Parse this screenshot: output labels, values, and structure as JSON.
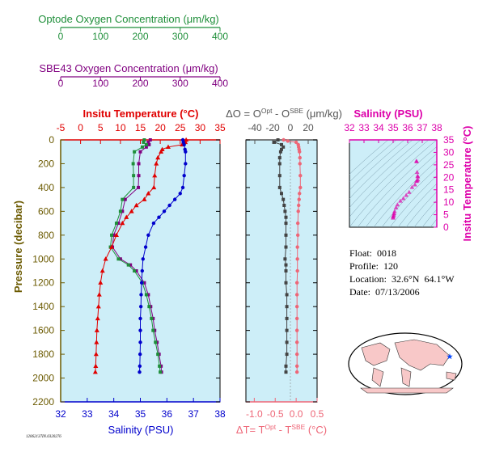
{
  "colors": {
    "panel_bg": "#cdeef8",
    "optode": "#1f8f3a",
    "sbe": "#800080",
    "temp": "#e00000",
    "sal": "#0000cc",
    "pressure": "#6b5a00",
    "delta_o": "#444444",
    "delta_t": "#ee6677",
    "ts": "#dd00aa"
  },
  "top_axes": {
    "optode": {
      "label": "Optode Oxygen Concentration (μm/kg)",
      "ticks": [
        "0",
        "100",
        "200",
        "300",
        "400"
      ]
    },
    "sbe": {
      "label": "SBE43 Oxygen Concentration (μm/kg)",
      "ticks": [
        "0",
        "100",
        "200",
        "300",
        "400"
      ]
    }
  },
  "info": {
    "float": "Float:  0018",
    "profile": "Profile:  120",
    "location": "Location:  32.6°N  64.1°W",
    "date": "Date:  07/13/2006"
  },
  "footer_id": "12062137IN.0320276",
  "chart_data": [
    {
      "type": "scatter",
      "panel": "profile",
      "title": "Insitu Temperature (°C)",
      "xlabel": "Salinity (PSU)",
      "ylabel": "Pressure (decibar)",
      "temp_ticks": [
        "-5",
        "0",
        "5",
        "10",
        "15",
        "20",
        "25",
        "30",
        "35"
      ],
      "sal_ticks": [
        "32",
        "33",
        "34",
        "35",
        "36",
        "37",
        "38"
      ],
      "pressure_ticks": [
        "0",
        "200",
        "400",
        "600",
        "800",
        "1000",
        "1200",
        "1400",
        "1600",
        "1800",
        "2000",
        "2200"
      ],
      "temp_range": [
        -5,
        35
      ],
      "sal_range": [
        32,
        38
      ],
      "oxy_range": [
        0,
        400
      ],
      "pressure_range": [
        0,
        2200
      ],
      "series": [
        {
          "name": "Insitu Temperature",
          "points": [
            [
              0,
              26.5
            ],
            [
              20,
              26.3
            ],
            [
              40,
              25.5
            ],
            [
              60,
              22
            ],
            [
              80,
              20.5
            ],
            [
              100,
              20.2
            ],
            [
              150,
              19.4
            ],
            [
              200,
              19
            ],
            [
              300,
              18.6
            ],
            [
              400,
              18.4
            ],
            [
              450,
              17
            ],
            [
              500,
              16
            ],
            [
              550,
              14
            ],
            [
              600,
              12.8
            ],
            [
              650,
              11.5
            ],
            [
              700,
              10.5
            ],
            [
              800,
              9
            ],
            [
              900,
              7.8
            ],
            [
              1000,
              6.3
            ],
            [
              1100,
              5.5
            ],
            [
              1200,
              5
            ],
            [
              1300,
              4.7
            ],
            [
              1400,
              4.5
            ],
            [
              1500,
              4.3
            ],
            [
              1600,
              4.1
            ],
            [
              1700,
              4
            ],
            [
              1800,
              3.9
            ],
            [
              1900,
              3.8
            ],
            [
              1950,
              3.7
            ]
          ]
        },
        {
          "name": "Salinity",
          "points": [
            [
              0,
              36.6
            ],
            [
              20,
              36.62
            ],
            [
              40,
              36.65
            ],
            [
              80,
              36.68
            ],
            [
              100,
              36.7
            ],
            [
              200,
              36.7
            ],
            [
              300,
              36.65
            ],
            [
              400,
              36.6
            ],
            [
              450,
              36.5
            ],
            [
              500,
              36.3
            ],
            [
              550,
              36.1
            ],
            [
              600,
              35.9
            ],
            [
              650,
              35.7
            ],
            [
              700,
              35.5
            ],
            [
              800,
              35.3
            ],
            [
              900,
              35.2
            ],
            [
              1000,
              35.1
            ],
            [
              1100,
              35.07
            ],
            [
              1200,
              35.05
            ],
            [
              1300,
              35.03
            ],
            [
              1400,
              35.02
            ],
            [
              1500,
              35.0
            ],
            [
              1600,
              35.0
            ],
            [
              1700,
              35.0
            ],
            [
              1800,
              34.99
            ],
            [
              1900,
              34.98
            ],
            [
              1950,
              34.97
            ]
          ]
        },
        {
          "name": "Optode Oxygen",
          "points": [
            [
              0,
              210
            ],
            [
              20,
              208
            ],
            [
              40,
              215
            ],
            [
              60,
              205
            ],
            [
              100,
              185
            ],
            [
              200,
              182
            ],
            [
              300,
              183
            ],
            [
              400,
              183
            ],
            [
              500,
              155
            ],
            [
              600,
              150
            ],
            [
              700,
              140
            ],
            [
              800,
              128
            ],
            [
              900,
              125
            ],
            [
              1000,
              145
            ],
            [
              1050,
              170
            ],
            [
              1100,
              185
            ],
            [
              1200,
              205
            ],
            [
              1300,
              215
            ],
            [
              1400,
              222
            ],
            [
              1500,
              228
            ],
            [
              1600,
              232
            ],
            [
              1700,
              238
            ],
            [
              1800,
              244
            ],
            [
              1900,
              248
            ],
            [
              1950,
              250
            ]
          ]
        },
        {
          "name": "SBE43 Oxygen",
          "points": [
            [
              0,
              225
            ],
            [
              20,
              220
            ],
            [
              40,
              222
            ],
            [
              60,
              215
            ],
            [
              100,
              200
            ],
            [
              200,
              196
            ],
            [
              300,
              196
            ],
            [
              400,
              195
            ],
            [
              500,
              162
            ],
            [
              600,
              155
            ],
            [
              700,
              145
            ],
            [
              800,
              133
            ],
            [
              900,
              130
            ],
            [
              1000,
              150
            ],
            [
              1050,
              175
            ],
            [
              1100,
              190
            ],
            [
              1200,
              210
            ],
            [
              1300,
              220
            ],
            [
              1400,
              226
            ],
            [
              1500,
              232
            ],
            [
              1600,
              236
            ],
            [
              1700,
              242
            ],
            [
              1800,
              247
            ],
            [
              1900,
              252
            ],
            [
              1950,
              253
            ]
          ]
        }
      ]
    },
    {
      "type": "scatter",
      "panel": "delta",
      "title": "ΔO = O^Opt - O^SBE (μm/kg)",
      "title_parts": [
        "ΔO = O",
        "Opt",
        " - O",
        "SBE",
        " (μm/kg)"
      ],
      "xlabel": "ΔT= T^Opt - T^SBE (°C)",
      "xlabel_parts": [
        "ΔT= T",
        "Opt",
        " - T",
        "SBE",
        " (°C)"
      ],
      "delta_o_ticks": [
        "-40",
        "-20",
        "0",
        "20"
      ],
      "delta_t_ticks": [
        "-1.0",
        "-0.5",
        "0.0",
        "0.5"
      ],
      "delta_o_range": [
        -50,
        30
      ],
      "delta_t_range": [
        -1.2,
        0.5
      ],
      "series": [
        {
          "name": "ΔO",
          "points": [
            [
              0,
              -14
            ],
            [
              20,
              -18
            ],
            [
              40,
              -10
            ],
            [
              60,
              -8
            ],
            [
              80,
              -10
            ],
            [
              100,
              -11
            ],
            [
              150,
              -12
            ],
            [
              200,
              -12
            ],
            [
              300,
              -12
            ],
            [
              400,
              -12
            ],
            [
              450,
              -10
            ],
            [
              500,
              -8
            ],
            [
              550,
              -7
            ],
            [
              600,
              -6
            ],
            [
              650,
              -5
            ],
            [
              700,
              -5
            ],
            [
              800,
              -5
            ],
            [
              900,
              -5
            ],
            [
              1000,
              -6
            ],
            [
              1050,
              -5
            ],
            [
              1100,
              -5
            ],
            [
              1200,
              -5
            ],
            [
              1300,
              -4
            ],
            [
              1400,
              -4
            ],
            [
              1500,
              -4
            ],
            [
              1600,
              -4
            ],
            [
              1700,
              -4
            ],
            [
              1800,
              -4
            ],
            [
              1900,
              -5
            ],
            [
              1950,
              -5
            ]
          ]
        },
        {
          "name": "ΔT",
          "points": [
            [
              0,
              -0.3
            ],
            [
              10,
              -0.2
            ],
            [
              20,
              0.0
            ],
            [
              40,
              0.05
            ],
            [
              60,
              0.06
            ],
            [
              80,
              0.07
            ],
            [
              100,
              0.08
            ],
            [
              150,
              0.09
            ],
            [
              200,
              0.09
            ],
            [
              300,
              0.1
            ],
            [
              400,
              0.1
            ],
            [
              450,
              0.08
            ],
            [
              500,
              0.07
            ],
            [
              550,
              0.06
            ],
            [
              600,
              0.05
            ],
            [
              700,
              0.04
            ],
            [
              800,
              0.04
            ],
            [
              900,
              0.03
            ],
            [
              1000,
              0.03
            ],
            [
              1100,
              0.03
            ],
            [
              1200,
              0.02
            ],
            [
              1300,
              0.02
            ],
            [
              1400,
              0.02
            ],
            [
              1500,
              0.02
            ],
            [
              1600,
              0.02
            ],
            [
              1700,
              0.02
            ],
            [
              1800,
              0.02
            ],
            [
              1900,
              0.02
            ],
            [
              1950,
              0.02
            ]
          ]
        }
      ]
    },
    {
      "type": "scatter",
      "panel": "ts",
      "title": "Salinity (PSU)",
      "ylabel": "Insitu Temperature (°C)",
      "x_ticks": [
        "32",
        "33",
        "34",
        "35",
        "36",
        "37",
        "38"
      ],
      "y_ticks": [
        "0",
        "5",
        "10",
        "15",
        "20",
        "25",
        "30",
        "35"
      ],
      "xlim": [
        32,
        38
      ],
      "ylim": [
        0,
        35
      ],
      "points": [
        [
          35.0,
          3.7
        ],
        [
          35.0,
          4.1
        ],
        [
          35.02,
          4.5
        ],
        [
          35.05,
          5
        ],
        [
          35.07,
          5.5
        ],
        [
          35.1,
          6.3
        ],
        [
          35.2,
          7.8
        ],
        [
          35.3,
          9
        ],
        [
          35.5,
          10.5
        ],
        [
          35.7,
          11.5
        ],
        [
          35.9,
          12.8
        ],
        [
          36.1,
          14
        ],
        [
          36.3,
          16
        ],
        [
          36.5,
          17
        ],
        [
          36.6,
          18.4
        ],
        [
          36.65,
          18.6
        ],
        [
          36.7,
          19
        ],
        [
          36.7,
          20.2
        ],
        [
          36.68,
          20.5
        ],
        [
          36.65,
          22
        ],
        [
          36.62,
          26.3
        ],
        [
          36.6,
          26.5
        ]
      ]
    }
  ]
}
